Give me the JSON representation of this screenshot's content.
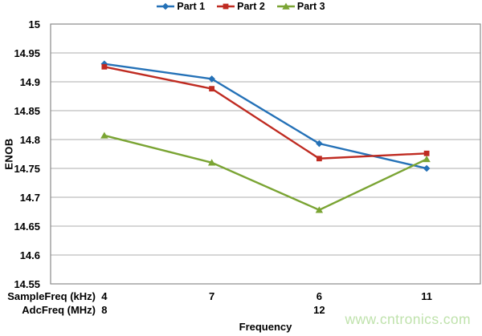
{
  "watermark": {
    "text": "www.cntronics.com",
    "color": "#BFE2AC"
  },
  "chart_data": {
    "type": "line",
    "title": "",
    "ylabel": "ENOB",
    "xlabel": "Frequency",
    "ylim": [
      14.55,
      15.0
    ],
    "yticks": [
      15,
      14.95,
      14.9,
      14.85,
      14.8,
      14.75,
      14.7,
      14.65,
      14.6,
      14.55
    ],
    "ytick_labels": [
      "15",
      "14.95",
      "14.9",
      "14.85",
      "14.8",
      "14.75",
      "14.7",
      "14.65",
      "14.6",
      "14.55"
    ],
    "grid": true,
    "legend_position": "top-center",
    "x_axis_rows": [
      {
        "label": "SampleFreq (kHz)",
        "values": [
          "4",
          "7",
          "6",
          "11"
        ]
      },
      {
        "label": "AdcFreq (MHz)",
        "values": [
          "8",
          "",
          "12",
          ""
        ]
      }
    ],
    "series": [
      {
        "name": "Part 1",
        "marker": "diamond",
        "color": "#2471B7",
        "values": [
          14.931,
          14.905,
          14.793,
          14.75
        ]
      },
      {
        "name": "Part 2",
        "marker": "square",
        "color": "#BF2B21",
        "values": [
          14.926,
          14.888,
          14.767,
          14.776
        ]
      },
      {
        "name": "Part 3",
        "marker": "triangle",
        "color": "#7AA433",
        "values": [
          14.807,
          14.76,
          14.678,
          14.766
        ]
      }
    ],
    "colors": {
      "grid": "#ACACAC",
      "axis": "#8A8A8A",
      "text": "#000000",
      "background": "#FFFFFF"
    }
  }
}
